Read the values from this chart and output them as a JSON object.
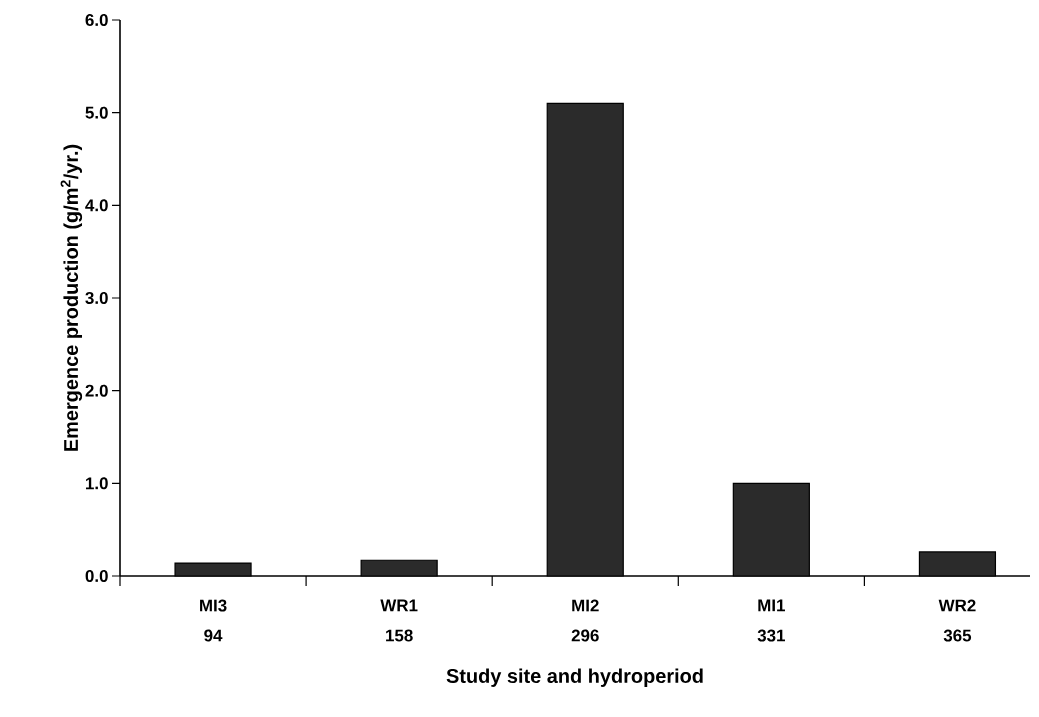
{
  "chart_data": {
    "type": "bar",
    "xlabel": "Study site and hydroperiod",
    "ylabel": "Emergence production (g/m$^{2}$/yr.)",
    "categories": [
      "MI3",
      "WR1",
      "MI2",
      "MI1",
      "WR2"
    ],
    "values": [
      0.14,
      0.17,
      5.1,
      1.0,
      0.26
    ],
    "color": "#2b2b2b",
    "ylim": [
      0,
      6
    ],
    "yticks": [
      {
        "value": 0,
        "label": "0.0"
      },
      {
        "value": 1,
        "label": "1.0"
      },
      {
        "value": 2,
        "label": "2.0"
      },
      {
        "value": 3,
        "label": "3.0"
      },
      {
        "value": 4,
        "label": "4.0"
      },
      {
        "value": 5,
        "label": "5.0"
      },
      {
        "value": 6,
        "label": "6.0"
      }
    ],
    "annotations": [
      "94",
      "158",
      "296",
      "331",
      "365"
    ],
    "grid": false
  }
}
